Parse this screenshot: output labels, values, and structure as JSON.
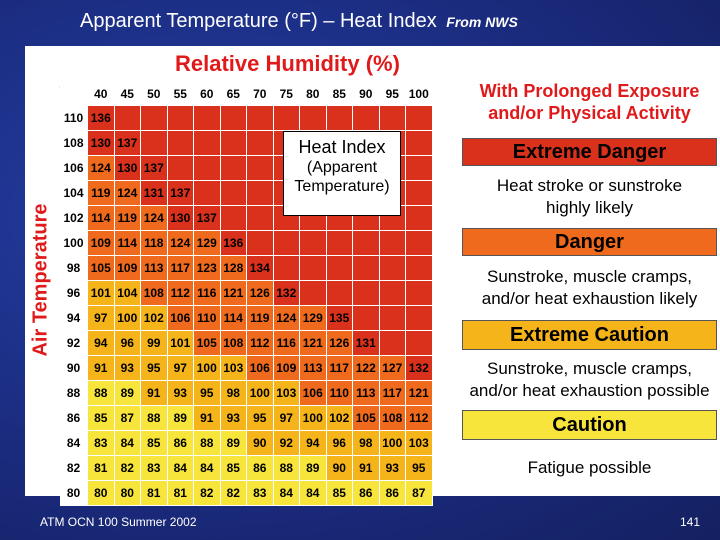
{
  "slide": {
    "title": "Apparent Temperature (°F) – Heat Index",
    "title_suffix": "From NWS",
    "footer_left": "ATM OCN 100 Summer 2002",
    "page_number": "141"
  },
  "colors": {
    "extreme_danger": "#d9311b",
    "danger": "#ef6a1d",
    "extreme_caution": "#f5b41a",
    "caution": "#f7e53b",
    "background": "#1e2f8a"
  },
  "chart_data": {
    "type": "table",
    "title": "Relative Humidity (%)",
    "ylabel": "Air Temperature",
    "unit_label": "°F",
    "x": [
      40,
      45,
      50,
      55,
      60,
      65,
      70,
      75,
      80,
      85,
      90,
      95,
      100
    ],
    "y": [
      110,
      108,
      106,
      104,
      102,
      100,
      98,
      96,
      94,
      92,
      90,
      88,
      86,
      84,
      82,
      80
    ],
    "values": [
      [
        136,
        null,
        null,
        null,
        null,
        null,
        null,
        null,
        null,
        null,
        null,
        null,
        null
      ],
      [
        130,
        137,
        null,
        null,
        null,
        null,
        null,
        null,
        null,
        null,
        null,
        null,
        null
      ],
      [
        124,
        130,
        137,
        null,
        null,
        null,
        null,
        null,
        null,
        null,
        null,
        null,
        null
      ],
      [
        119,
        124,
        131,
        137,
        null,
        null,
        null,
        null,
        null,
        null,
        null,
        null,
        null
      ],
      [
        114,
        119,
        124,
        130,
        137,
        null,
        null,
        null,
        null,
        null,
        null,
        null,
        null
      ],
      [
        109,
        114,
        118,
        124,
        129,
        136,
        null,
        null,
        null,
        null,
        null,
        null,
        null
      ],
      [
        105,
        109,
        113,
        117,
        123,
        128,
        134,
        null,
        null,
        null,
        null,
        null,
        null
      ],
      [
        101,
        104,
        108,
        112,
        116,
        121,
        126,
        132,
        null,
        null,
        null,
        null,
        null
      ],
      [
        97,
        100,
        102,
        106,
        110,
        114,
        119,
        124,
        129,
        135,
        null,
        null,
        null
      ],
      [
        94,
        96,
        99,
        101,
        105,
        108,
        112,
        116,
        121,
        126,
        131,
        null,
        null
      ],
      [
        91,
        93,
        95,
        97,
        100,
        103,
        106,
        109,
        113,
        117,
        122,
        127,
        132
      ],
      [
        88,
        89,
        91,
        93,
        95,
        98,
        100,
        103,
        106,
        110,
        113,
        117,
        121
      ],
      [
        85,
        87,
        88,
        89,
        91,
        93,
        95,
        97,
        100,
        102,
        105,
        108,
        112
      ],
      [
        83,
        84,
        85,
        86,
        88,
        89,
        90,
        92,
        94,
        96,
        98,
        100,
        103
      ],
      [
        81,
        82,
        83,
        84,
        84,
        85,
        86,
        88,
        89,
        90,
        91,
        93,
        95
      ],
      [
        80,
        80,
        81,
        81,
        82,
        82,
        83,
        84,
        84,
        85,
        86,
        86,
        87
      ]
    ],
    "thresholds": {
      "caution": 80,
      "extreme_caution": 90,
      "danger": 105,
      "extreme_danger": 130
    }
  },
  "callout": {
    "line1": "Heat Index",
    "line2": "(Apparent",
    "line3": "Temperature)"
  },
  "legend": {
    "title_line1": "With Prolonged Exposure",
    "title_line2": "and/or Physical Activity",
    "bands": [
      {
        "name": "Extreme Danger",
        "desc1": "Heat stroke or sunstroke",
        "desc2": "highly likely",
        "color": "#d9311b"
      },
      {
        "name": "Danger",
        "desc1": "Sunstroke, muscle cramps,",
        "desc2": "and/or heat exhaustion likely",
        "color": "#ef6a1d"
      },
      {
        "name": "Extreme Caution",
        "desc1": "Sunstroke, muscle cramps,",
        "desc2": "and/or heat exhaustion possible",
        "color": "#f5b41a"
      },
      {
        "name": "Caution",
        "desc1": "Fatigue possible",
        "desc2": "",
        "color": "#f7e53b"
      }
    ]
  }
}
